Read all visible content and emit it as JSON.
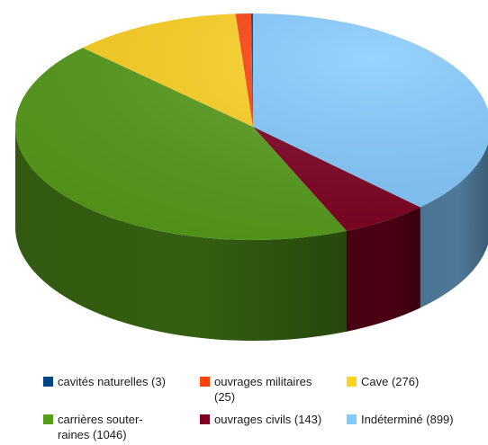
{
  "chart_data": {
    "type": "pie",
    "style": "3d-exploded-none",
    "start": "top, clockwise",
    "title": "",
    "slices": [
      {
        "label": "Indéterminé",
        "value": 899,
        "color": "#83caff"
      },
      {
        "label": "ouvrages civils",
        "value": 143,
        "color": "#7e0021"
      },
      {
        "label": "carrières souterraines",
        "value": 1046,
        "color": "#579d1c"
      },
      {
        "label": "Cave",
        "value": 276,
        "color": "#ffd320"
      },
      {
        "label": "ouvrages militaires",
        "value": 25,
        "color": "#ff420e"
      },
      {
        "label": "cavités naturelles",
        "value": 3,
        "color": "#004586"
      }
    ],
    "legend": {
      "placement": "bottom",
      "items": [
        {
          "text": "cavités naturelles (3)",
          "color": "#004586",
          "icon": "square-swatch"
        },
        {
          "text": "ouvrages militaires (25)",
          "color": "#ff420e",
          "icon": "square-swatch"
        },
        {
          "text": "Cave (276)",
          "color": "#ffd320",
          "icon": "square-swatch"
        },
        {
          "text": "carrières souter-raines (1046)",
          "color": "#579d1c",
          "icon": "square-swatch"
        },
        {
          "text": "ouvrages civils (143)",
          "color": "#7e0021",
          "icon": "square-swatch"
        },
        {
          "text": "Indéterminé (899)",
          "color": "#83caff",
          "icon": "square-swatch"
        }
      ]
    }
  }
}
